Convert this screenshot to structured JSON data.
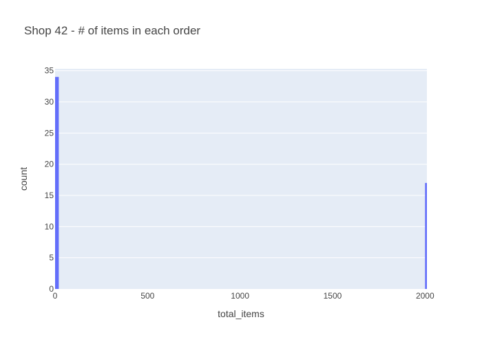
{
  "chart_data": {
    "type": "bar",
    "title": "Shop 42 - # of items in each order",
    "xlabel": "total_items",
    "ylabel": "count",
    "xlim": [
      0,
      2010
    ],
    "ylim": [
      0,
      35.3
    ],
    "x_ticks": [
      0,
      500,
      1000,
      1500,
      2000
    ],
    "y_ticks": [
      0,
      5,
      10,
      15,
      20,
      25,
      30,
      35
    ],
    "bin_width": 20,
    "bars": [
      {
        "x0": 0,
        "x1": 20,
        "value": 34
      },
      {
        "x0": 2000,
        "x1": 2020,
        "value": 17
      }
    ],
    "grid": true,
    "colors": {
      "bar": "#636efa",
      "plot_bg": "#e5ecf6",
      "grid": "#ffffff",
      "text": "#444444"
    }
  }
}
